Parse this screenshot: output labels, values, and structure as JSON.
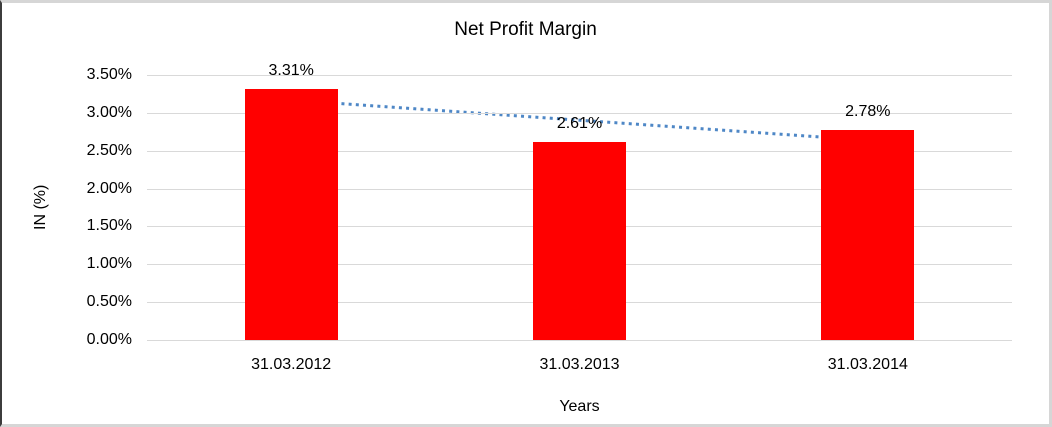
{
  "chart_data": {
    "type": "bar",
    "title": "Net Profit Margin",
    "xlabel": "Years",
    "ylabel": "IN (%)",
    "categories": [
      "31.03.2012",
      "31.03.2013",
      "31.03.2014"
    ],
    "values": [
      3.31,
      2.61,
      2.78
    ],
    "data_labels": [
      "3.31%",
      "2.61%",
      "2.78%"
    ],
    "y_ticks": [
      "3.50%",
      "3.00%",
      "2.50%",
      "2.00%",
      "1.50%",
      "1.00%",
      "0.50%",
      "0.00%"
    ],
    "ylim": [
      0,
      3.5
    ],
    "y_tick_step": 0.5,
    "grid": true,
    "legend": "none",
    "bar_color": "#ff0000",
    "gridline_color": "#d9d9d9",
    "trendline": {
      "type": "linear",
      "style": "dotted",
      "color": "#4e87c6",
      "fitted_values": [
        3.168,
        2.903,
        2.638
      ]
    }
  }
}
